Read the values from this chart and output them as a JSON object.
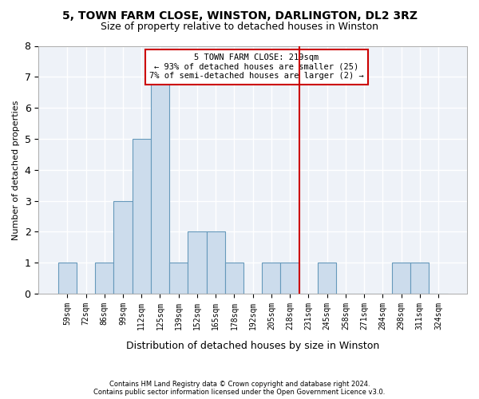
{
  "title1": "5, TOWN FARM CLOSE, WINSTON, DARLINGTON, DL2 3RZ",
  "title2": "Size of property relative to detached houses in Winston",
  "xlabel": "Distribution of detached houses by size in Winston",
  "ylabel": "Number of detached properties",
  "footnote1": "Contains HM Land Registry data © Crown copyright and database right 2024.",
  "footnote2": "Contains public sector information licensed under the Open Government Licence v3.0.",
  "bin_labels": [
    "59sqm",
    "72sqm",
    "86sqm",
    "99sqm",
    "112sqm",
    "125sqm",
    "139sqm",
    "152sqm",
    "165sqm",
    "178sqm",
    "192sqm",
    "205sqm",
    "218sqm",
    "231sqm",
    "245sqm",
    "258sqm",
    "271sqm",
    "284sqm",
    "298sqm",
    "311sqm",
    "324sqm"
  ],
  "bar_heights": [
    1,
    0,
    1,
    3,
    5,
    7,
    1,
    2,
    2,
    1,
    0,
    1,
    1,
    0,
    1,
    0,
    0,
    0,
    1,
    1,
    0
  ],
  "bar_color": "#ccdcec",
  "bar_edge_color": "#6699bb",
  "vline_x": 12.5,
  "vline_color": "#cc0000",
  "annotation_title": "5 TOWN FARM CLOSE: 219sqm",
  "annotation_line1": "← 93% of detached houses are smaller (25)",
  "annotation_line2": "7% of semi-detached houses are larger (2) →",
  "ylim": [
    0,
    8
  ],
  "yticks": [
    0,
    1,
    2,
    3,
    4,
    5,
    6,
    7,
    8
  ],
  "bg_color": "#eef2f8"
}
